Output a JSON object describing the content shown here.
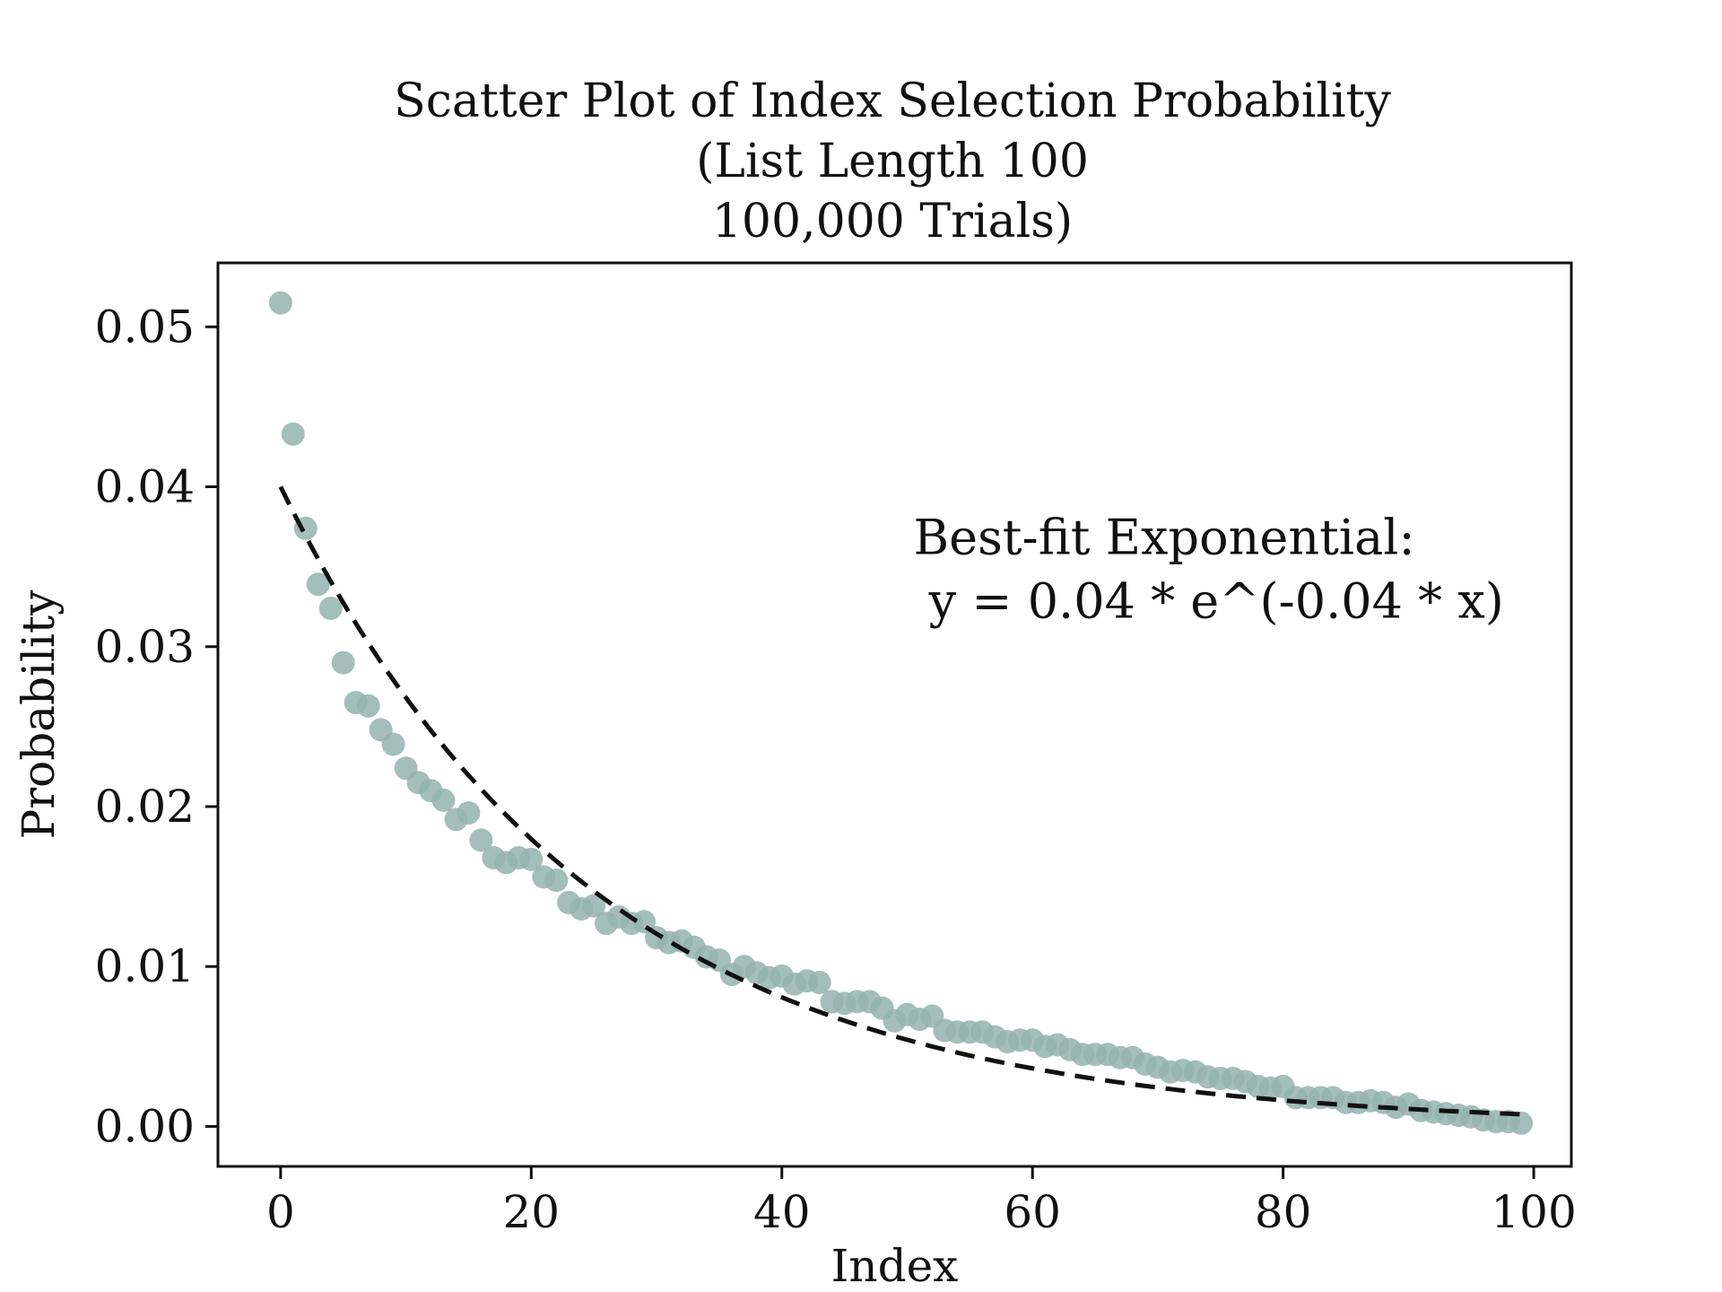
{
  "chart_data": {
    "type": "scatter",
    "title": [
      "Scatter Plot of Index Selection Probability",
      "(List Length 100",
      "100,000 Trials)"
    ],
    "xlabel": "Index",
    "ylabel": "Probability",
    "xlim": [
      -5,
      103
    ],
    "ylim": [
      -0.0025,
      0.054
    ],
    "xticks": [
      0,
      20,
      40,
      60,
      80,
      100
    ],
    "xtick_labels": [
      "0",
      "20",
      "40",
      "60",
      "80",
      "100"
    ],
    "yticks": [
      0.0,
      0.01,
      0.02,
      0.03,
      0.04,
      0.05
    ],
    "ytick_labels": [
      "0.00",
      "0.01",
      "0.02",
      "0.03",
      "0.04",
      "0.05"
    ],
    "grid": false,
    "series": [
      {
        "type": "scatter",
        "color": "#94b3ae",
        "x": [
          0,
          1,
          2,
          3,
          4,
          5,
          6,
          7,
          8,
          9,
          10,
          11,
          12,
          13,
          14,
          15,
          16,
          17,
          18,
          19,
          20,
          21,
          22,
          23,
          24,
          25,
          26,
          27,
          28,
          29,
          30,
          31,
          32,
          33,
          34,
          35,
          36,
          37,
          38,
          39,
          40,
          41,
          42,
          43,
          44,
          45,
          46,
          47,
          48,
          49,
          50,
          51,
          52,
          53,
          54,
          55,
          56,
          57,
          58,
          59,
          60,
          61,
          62,
          63,
          64,
          65,
          66,
          67,
          68,
          69,
          70,
          71,
          72,
          73,
          74,
          75,
          76,
          77,
          78,
          79,
          80,
          81,
          82,
          83,
          84,
          85,
          86,
          87,
          88,
          89,
          90,
          91,
          92,
          93,
          94,
          95,
          96,
          97,
          98,
          99
        ],
        "y": [
          0.0515,
          0.0433,
          0.0374,
          0.0339,
          0.0324,
          0.029,
          0.0265,
          0.0263,
          0.0248,
          0.0239,
          0.0224,
          0.0215,
          0.021,
          0.0204,
          0.0192,
          0.0196,
          0.0179,
          0.0168,
          0.0165,
          0.0168,
          0.0167,
          0.0156,
          0.0154,
          0.014,
          0.0136,
          0.0138,
          0.0127,
          0.0131,
          0.0127,
          0.0128,
          0.0118,
          0.0115,
          0.0116,
          0.0112,
          0.0106,
          0.0104,
          0.0095,
          0.01,
          0.0096,
          0.0093,
          0.0094,
          0.0089,
          0.0091,
          0.009,
          0.0078,
          0.0077,
          0.0078,
          0.0078,
          0.0074,
          0.0066,
          0.007,
          0.0067,
          0.0069,
          0.006,
          0.0059,
          0.0059,
          0.0059,
          0.0056,
          0.0053,
          0.0054,
          0.0054,
          0.005,
          0.0051,
          0.0048,
          0.0045,
          0.0045,
          0.0045,
          0.0043,
          0.0043,
          0.0039,
          0.0037,
          0.0034,
          0.0035,
          0.0034,
          0.0031,
          0.003,
          0.003,
          0.0028,
          0.0025,
          0.0024,
          0.0025,
          0.0018,
          0.0018,
          0.0018,
          0.0018,
          0.0015,
          0.0015,
          0.0016,
          0.0015,
          0.0012,
          0.0014,
          0.001,
          0.0009,
          0.0008,
          0.0007,
          0.0006,
          0.0004,
          0.0003,
          0.0003,
          0.0002
        ]
      },
      {
        "type": "line",
        "style": "dashed",
        "color": "#111111",
        "function": "0.04 * exp(-0.04 * x)",
        "x_range": [
          0,
          99
        ]
      }
    ],
    "annotations": [
      {
        "text": "Best-fit Exponential:",
        "x": 50.5,
        "y": 0.0358
      },
      {
        "text": " y = 0.04 * e^(-0.04 * x)",
        "x": 50.5,
        "y": 0.0318
      }
    ],
    "colors": {
      "marker": "#94b3ae",
      "fit_line": "#111111",
      "frame": "#111111"
    }
  }
}
